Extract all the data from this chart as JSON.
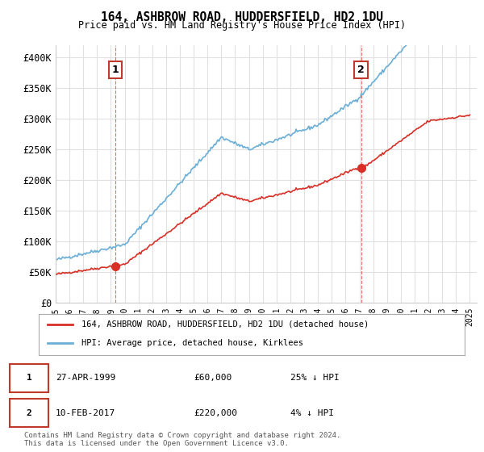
{
  "title": "164, ASHBROW ROAD, HUDDERSFIELD, HD2 1DU",
  "subtitle": "Price paid vs. HM Land Registry's House Price Index (HPI)",
  "ylabel_ticks": [
    "£0",
    "£50K",
    "£100K",
    "£150K",
    "£200K",
    "£250K",
    "£300K",
    "£350K",
    "£400K"
  ],
  "ylim": [
    0,
    420000
  ],
  "xlim_start": 1995.0,
  "xlim_end": 2025.5,
  "sale1_date": 1999.32,
  "sale1_price": 60000,
  "sale1_label": "1",
  "sale2_date": 2017.12,
  "sale2_price": 220000,
  "sale2_label": "2",
  "hpi_line_color": "#6baed6",
  "price_line_color": "#d73027",
  "sale_marker_color": "#d73027",
  "annotation_box_color": "#c0392b",
  "grid_color": "#e0e0e0",
  "background_color": "#ffffff",
  "legend_label1": "164, ASHBROW ROAD, HUDDERSFIELD, HD2 1DU (detached house)",
  "legend_label2": "HPI: Average price, detached house, Kirklees",
  "table_row1": [
    "1",
    "27-APR-1999",
    "£60,000",
    "25% ↓ HPI"
  ],
  "table_row2": [
    "2",
    "10-FEB-2017",
    "£220,000",
    "4% ↓ HPI"
  ],
  "footnote": "Contains HM Land Registry data © Crown copyright and database right 2024.\nThis data is licensed under the Open Government Licence v3.0."
}
